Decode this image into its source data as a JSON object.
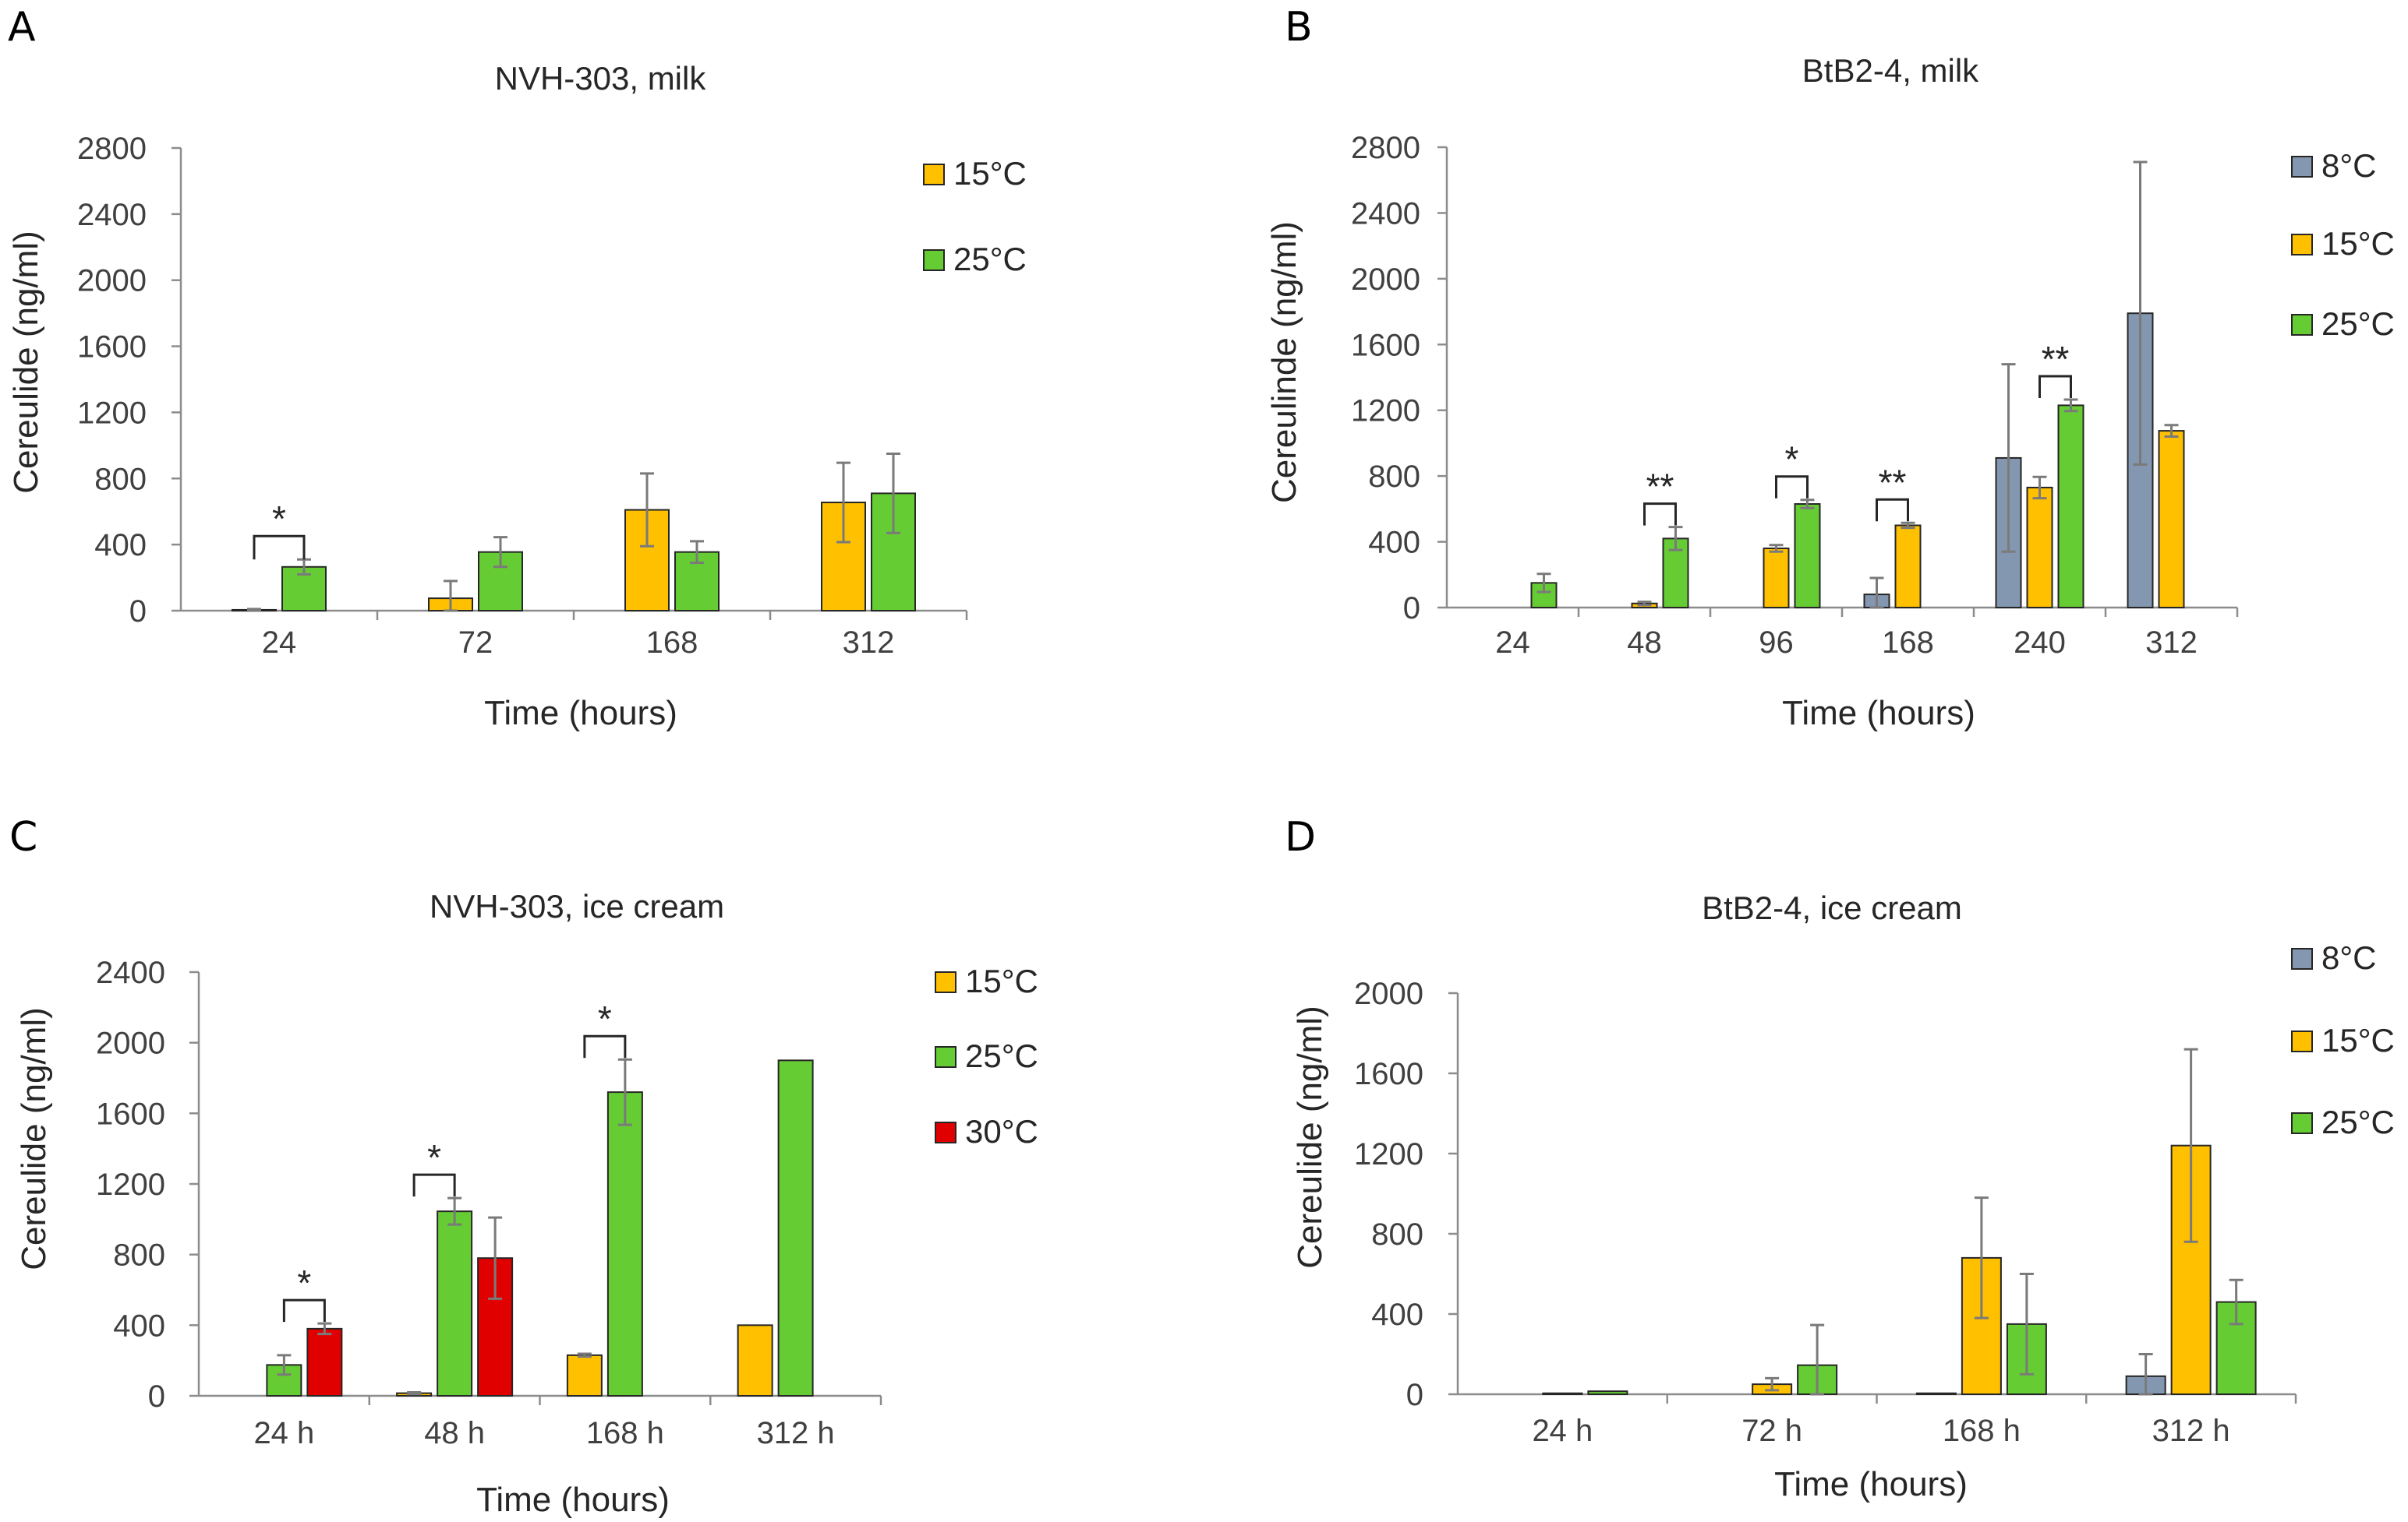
{
  "colors": {
    "8°C": "#8497b0",
    "15°C": "#ffc000",
    "25°C": "#66cc33",
    "30°C": "#e00000"
  },
  "chart_data": [
    {
      "panel": "A",
      "type": "bar",
      "title": "NVH-303, milk",
      "xlabel": "Time (hours)",
      "ylabel": "Cereulide (ng/ml)",
      "ylim": [
        0,
        2800
      ],
      "yticks": [
        0,
        400,
        800,
        1200,
        1600,
        2000,
        2400,
        2800
      ],
      "ytick_labels": [
        "0",
        "400",
        "800",
        "1200",
        "1600",
        "2000",
        "2400",
        "2800"
      ],
      "categories": [
        "24",
        "72",
        "168",
        "312"
      ],
      "legend_position": "top-right",
      "series": [
        {
          "name": "15°C",
          "values": [
            5,
            75,
            610,
            655
          ],
          "errors": [
            5,
            105,
            220,
            240
          ]
        },
        {
          "name": "25°C",
          "values": [
            265,
            355,
            355,
            710
          ],
          "errors": [
            45,
            90,
            65,
            240
          ]
        }
      ],
      "annotations": [
        {
          "label": "*",
          "category": 0,
          "from": 0,
          "to": 1
        }
      ]
    },
    {
      "panel": "B",
      "type": "bar",
      "title": "BtB2-4, milk",
      "xlabel": "Time (hours)",
      "ylabel": "Cereulinde (ng/ml)",
      "ylim": [
        0,
        2800
      ],
      "yticks": [
        0,
        400,
        800,
        1200,
        1600,
        2000,
        2400,
        2800
      ],
      "ytick_labels": [
        "0",
        "400",
        "800",
        "1200",
        "1600",
        "2000",
        "2400",
        "2800"
      ],
      "categories": [
        "24",
        "48",
        "96",
        "168",
        "240",
        "312"
      ],
      "legend_position": "top-right",
      "series": [
        {
          "name": "8°C",
          "values": [
            0,
            0,
            0,
            80,
            910,
            1790
          ],
          "errors": [
            0,
            0,
            0,
            100,
            570,
            920
          ]
        },
        {
          "name": "15°C",
          "values": [
            0,
            25,
            360,
            500,
            730,
            1075
          ],
          "errors": [
            0,
            10,
            20,
            15,
            65,
            35
          ]
        },
        {
          "name": "25°C",
          "values": [
            150,
            420,
            630,
            null,
            1230,
            null
          ],
          "errors": [
            55,
            70,
            25,
            null,
            35,
            null
          ]
        }
      ],
      "annotations": [
        {
          "label": "**",
          "category": 1,
          "from": 1,
          "to": 2
        },
        {
          "label": "*",
          "category": 2,
          "from": 1,
          "to": 2
        },
        {
          "label": "**",
          "category": 3,
          "from": 0,
          "to": 1
        },
        {
          "label": "**",
          "category": 4,
          "from": 1,
          "to": 2
        }
      ]
    },
    {
      "panel": "C",
      "type": "bar",
      "title": "NVH-303, ice cream",
      "xlabel": "Time (hours)",
      "ylabel": "Cereulide (ng/ml)",
      "ylim": [
        0,
        2400
      ],
      "yticks": [
        0,
        400,
        800,
        1200,
        1600,
        2000,
        2400
      ],
      "ytick_labels": [
        "0",
        "400",
        "800",
        "1200",
        "1600",
        "2000",
        "2400"
      ],
      "categories": [
        "24 h",
        "48 h",
        "168 h",
        "312 h"
      ],
      "legend_position": "top-right",
      "series": [
        {
          "name": "15°C",
          "values": [
            0,
            15,
            230,
            400
          ],
          "errors": [
            0,
            5,
            8,
            0
          ]
        },
        {
          "name": "25°C",
          "values": [
            175,
            1045,
            1720,
            1900
          ],
          "errors": [
            55,
            75,
            185,
            0
          ]
        },
        {
          "name": "30°C",
          "values": [
            380,
            780,
            null,
            null
          ],
          "errors": [
            30,
            230,
            null,
            null
          ]
        }
      ],
      "annotations": [
        {
          "label": "*",
          "category": 0,
          "from": 1,
          "to": 2
        },
        {
          "label": "*",
          "category": 1,
          "from": 0,
          "to": 1
        },
        {
          "label": "*",
          "category": 2,
          "from": 0,
          "to": 1
        }
      ]
    },
    {
      "panel": "D",
      "type": "bar",
      "title": "BtB2-4, ice cream",
      "xlabel": "Time (hours)",
      "ylabel": "Cereulide (ng/ml)",
      "ylim": [
        0,
        2000
      ],
      "yticks": [
        0,
        400,
        800,
        1200,
        1600,
        2000
      ],
      "ytick_labels": [
        "0",
        "400",
        "800",
        "1200",
        "1600",
        "2000"
      ],
      "categories": [
        "24 h",
        "72 h",
        "168 h",
        "312 h"
      ],
      "legend_position": "top-right",
      "series": [
        {
          "name": "8°C",
          "values": [
            0,
            0,
            5,
            90
          ],
          "errors": [
            0,
            0,
            0,
            110
          ]
        },
        {
          "name": "15°C",
          "values": [
            5,
            50,
            680,
            1240
          ],
          "errors": [
            0,
            30,
            300,
            480
          ]
        },
        {
          "name": "25°C",
          "values": [
            15,
            145,
            350,
            460
          ],
          "errors": [
            0,
            200,
            250,
            110
          ]
        }
      ],
      "annotations": []
    }
  ]
}
